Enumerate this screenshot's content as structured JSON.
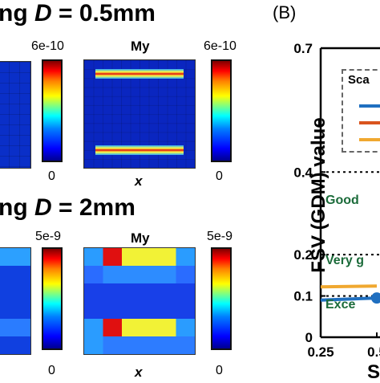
{
  "left_panel": {
    "top": {
      "heading_prefix": "ng",
      "heading_var": "D",
      "heading_value": " = 0.5mm",
      "map_title": "My",
      "colorbar_max": "6e-10",
      "colorbar_min": "0",
      "x_label": "x"
    },
    "bottom": {
      "heading_prefix": "ng",
      "heading_var": "D",
      "heading_value": " = 2mm",
      "map_title": "My",
      "colorbar_max": "5e-9",
      "colorbar_min": "0",
      "x_label": "x"
    }
  },
  "right_panel": {
    "panel_label": "(B)",
    "legend_title": "Sca",
    "region_labels": [
      "Good",
      "Very g",
      "Exce"
    ],
    "x_axis_partial_label": "S",
    "colors": {
      "series1": "#1f6fc0",
      "series2": "#d9541e",
      "series3": "#f0a830",
      "region_text": "#1b6b3a"
    }
  },
  "chart_data": {
    "type": "line",
    "title": "",
    "xlabel": "S",
    "ylabel": "FSV (GDM) value",
    "xlim": [
      0.25,
      0.5
    ],
    "ylim": [
      0,
      0.7
    ],
    "x_ticks": [
      "0.25",
      "0.5"
    ],
    "y_ticks": [
      "0",
      "0.1",
      "0.2",
      "0.4",
      "0.7"
    ],
    "thresholds": [
      0.1,
      0.2,
      0.4
    ],
    "series": [
      {
        "x": [
          0.25,
          0.5
        ],
        "y": [
          0.09,
          0.095
        ],
        "color": "#1f6fc0"
      },
      {
        "x": [
          0.25,
          0.5
        ],
        "y": [
          0.122,
          0.124
        ],
        "color": "#f0a830"
      }
    ]
  }
}
